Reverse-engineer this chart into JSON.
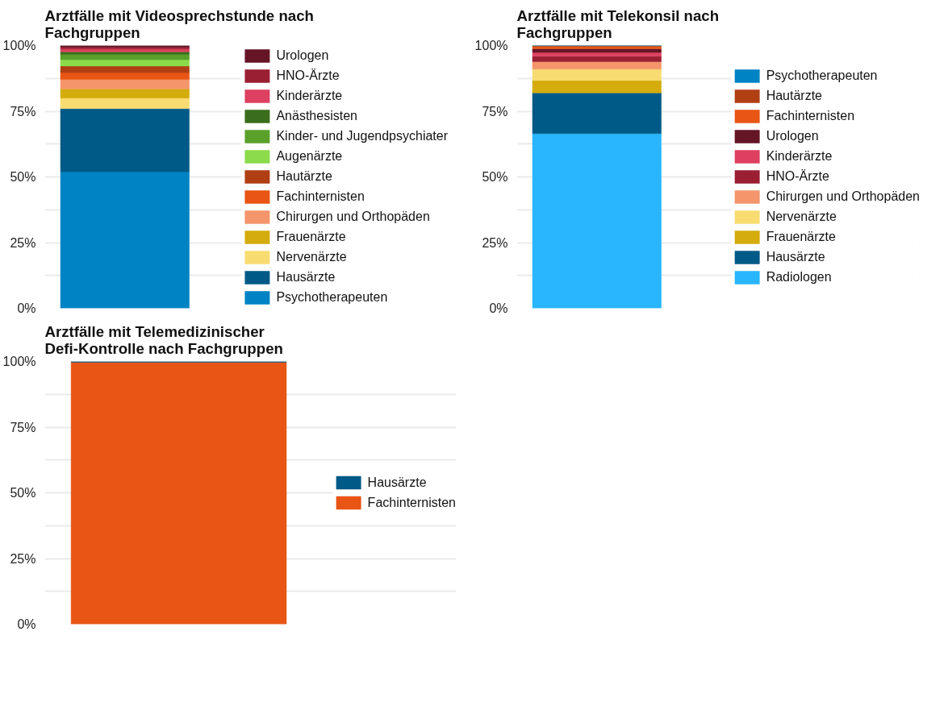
{
  "chart_data": [
    {
      "type": "bar",
      "title": "Arztfälle mit Videosprechstunde nach Fachgruppen",
      "stacked": true,
      "categories": [
        null
      ],
      "ylim": [
        0,
        100
      ],
      "yticks": [
        {
          "value": 0,
          "label": "0%"
        },
        {
          "value": 12.5,
          "label": null
        },
        {
          "value": 25,
          "label": "25%"
        },
        {
          "value": 37.5,
          "label": null
        },
        {
          "value": 50,
          "label": "50%"
        },
        {
          "value": 62.5,
          "label": null
        },
        {
          "value": 75,
          "label": "75%"
        },
        {
          "value": 87.5,
          "label": null
        },
        {
          "value": 100,
          "label": "100%"
        }
      ],
      "grid": "y",
      "legend": "right",
      "tick_labels": "y",
      "series": [
        {
          "name": "Psychotherapeuten",
          "color": "#0083c4",
          "values": [
            52
          ]
        },
        {
          "name": "Hausärzte",
          "color": "#005a87",
          "values": [
            24
          ]
        },
        {
          "name": "Nervenärzte",
          "color": "#f8dc72",
          "values": [
            4
          ]
        },
        {
          "name": "Frauenärzte",
          "color": "#d4ac0d",
          "values": [
            3.5
          ]
        },
        {
          "name": "Chirurgen und Orthopäden",
          "color": "#f4956b",
          "values": [
            3.6
          ]
        },
        {
          "name": "Fachinternisten",
          "color": "#e85515",
          "values": [
            2.6
          ]
        },
        {
          "name": "Hautärzte",
          "color": "#b03f14",
          "values": [
            2.5
          ]
        },
        {
          "name": "Augenärzte",
          "color": "#8bdb4a",
          "values": [
            2.4
          ]
        },
        {
          "name": "Kinder- und Jugendpsychiater",
          "color": "#5aa12a",
          "values": [
            2.0
          ]
        },
        {
          "name": "Anästhesisten",
          "color": "#3a6e1c",
          "values": [
            1.0
          ]
        },
        {
          "name": "Kinderärzte",
          "color": "#dd4060",
          "values": [
            1.1
          ]
        },
        {
          "name": "HNO-Ärzte",
          "color": "#9a1f33",
          "values": [
            0.7
          ]
        },
        {
          "name": "Urologen",
          "color": "#651525",
          "values": [
            0.6
          ]
        }
      ]
    },
    {
      "type": "bar",
      "title": "Arztfälle mit Telekonsil nach Fachgruppen",
      "stacked": true,
      "categories": [
        null
      ],
      "ylim": [
        0,
        100
      ],
      "yticks": [
        {
          "value": 0,
          "label": "0%"
        },
        {
          "value": 12.5,
          "label": null
        },
        {
          "value": 25,
          "label": "25%"
        },
        {
          "value": 37.5,
          "label": null
        },
        {
          "value": 50,
          "label": "50%"
        },
        {
          "value": 62.5,
          "label": null
        },
        {
          "value": 75,
          "label": "75%"
        },
        {
          "value": 87.5,
          "label": null
        },
        {
          "value": 100,
          "label": "100%"
        }
      ],
      "grid": "y",
      "legend": "right",
      "tick_labels": "y",
      "series": [
        {
          "name": "Radiologen",
          "color": "#29b6ff",
          "values": [
            66.5
          ]
        },
        {
          "name": "Hausärzte",
          "color": "#005a87",
          "values": [
            15.5
          ]
        },
        {
          "name": "Frauenärzte",
          "color": "#d4ac0d",
          "values": [
            4.7
          ]
        },
        {
          "name": "Nervenärzte",
          "color": "#f8dc72",
          "values": [
            4.3
          ]
        },
        {
          "name": "Chirurgen und Orthopäden",
          "color": "#f4956b",
          "values": [
            2.9
          ]
        },
        {
          "name": "HNO-Ärzte",
          "color": "#9a1f33",
          "values": [
            2.0
          ]
        },
        {
          "name": "Kinderärzte",
          "color": "#dd4060",
          "values": [
            1.5
          ]
        },
        {
          "name": "Urologen",
          "color": "#651525",
          "values": [
            1.4
          ]
        },
        {
          "name": "Fachinternisten",
          "color": "#e85515",
          "values": [
            1.0
          ]
        },
        {
          "name": "Hautärzte",
          "color": "#b03f14",
          "values": [
            0.1
          ]
        },
        {
          "name": "Psychotherapeuten",
          "color": "#0083c4",
          "values": [
            0.1
          ]
        }
      ]
    },
    {
      "type": "bar",
      "title": "Arztfälle mit Telemedizinischer Defi-Kontrolle nach Fachgruppen",
      "stacked": true,
      "categories": [
        null
      ],
      "ylim": [
        0,
        100
      ],
      "yticks": [
        {
          "value": 0,
          "label": "0%"
        },
        {
          "value": 12.5,
          "label": null
        },
        {
          "value": 25,
          "label": "25%"
        },
        {
          "value": 37.5,
          "label": null
        },
        {
          "value": 50,
          "label": "50%"
        },
        {
          "value": 62.5,
          "label": null
        },
        {
          "value": 75,
          "label": "75%"
        },
        {
          "value": 87.5,
          "label": null
        },
        {
          "value": 100,
          "label": "100%"
        }
      ],
      "grid": "y",
      "legend": "right",
      "tick_labels": "y",
      "series": [
        {
          "name": "Fachinternisten",
          "color": "#e85515",
          "values": [
            99.7
          ]
        },
        {
          "name": "Hausärzte",
          "color": "#005a87",
          "values": [
            0.3
          ]
        }
      ]
    }
  ]
}
